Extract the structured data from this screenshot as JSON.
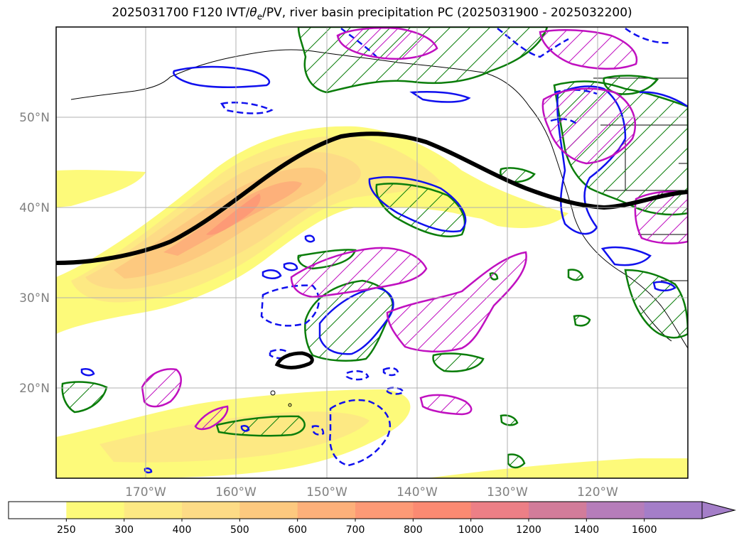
{
  "title": "2025031700 F120 IVT/θe/PV, river basin precipitation PC (2025031900 - 2025032200)",
  "title_parts": {
    "prefix": "2025031700 F120 IVT/",
    "theta": "θ",
    "theta_sub": "e",
    "suffix": "/PV, river basin precipitation PC (2025031900 - 2025032200)"
  },
  "lat_labels": [
    "50°N",
    "40°N",
    "30°N",
    "20°N"
  ],
  "lon_labels": [
    "170°W",
    "160°W",
    "150°W",
    "140°W",
    "130°W",
    "120°W"
  ],
  "colorbar": {
    "ticks": [
      "250",
      "300",
      "400",
      "500",
      "600",
      "700",
      "800",
      "1000",
      "1200",
      "1400",
      "1600"
    ],
    "colors": [
      "#ffffff",
      "#fdfa7a",
      "#fde983",
      "#fddb86",
      "#fdc97f",
      "#fdb07a",
      "#fd9a76",
      "#fb8a72",
      "#ec7f86",
      "#d27c9a",
      "#b67dba",
      "#a47ec8"
    ],
    "extend": "max"
  },
  "legend_colors": {
    "ivt_fill_low": "#fdfa7a",
    "ivt_fill_high": "#fb8a72",
    "pv_contour": "#000000",
    "green_contour": "#0a7d0a",
    "blue_contour": "#1010ee",
    "magenta_contour": "#c010c0"
  }
}
